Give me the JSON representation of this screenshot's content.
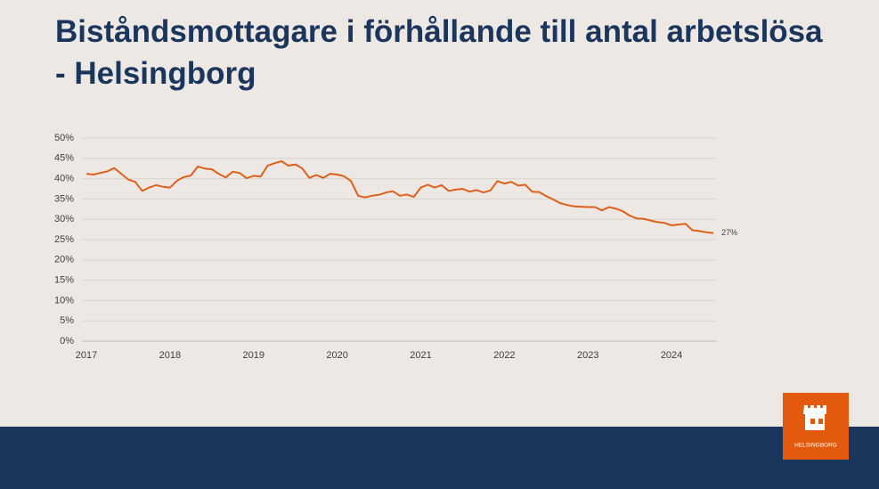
{
  "chart_data": {
    "type": "line",
    "title": "Biståndsmottagare i förhållande till antal arbetslösa - Helsingborg",
    "categories": [
      "2017",
      null,
      null,
      null,
      null,
      null,
      null,
      null,
      null,
      null,
      null,
      null,
      "2018",
      null,
      null,
      null,
      null,
      null,
      null,
      null,
      null,
      null,
      null,
      null,
      "2019",
      null,
      null,
      null,
      null,
      null,
      null,
      null,
      null,
      null,
      null,
      null,
      "2020",
      null,
      null,
      null,
      null,
      null,
      null,
      null,
      null,
      null,
      null,
      null,
      "2021",
      null,
      null,
      null,
      null,
      null,
      null,
      null,
      null,
      null,
      null,
      null,
      "2022",
      null,
      null,
      null,
      null,
      null,
      null,
      null,
      null,
      null,
      null,
      null,
      "2023",
      null,
      null,
      null,
      null,
      null,
      null,
      null,
      null,
      null,
      null,
      null,
      "2024",
      null,
      null,
      null,
      null,
      null,
      null
    ],
    "series": [
      {
        "color": "#e0601a",
        "values": [
          41.2,
          41,
          41.4,
          41.8,
          42.6,
          41.2,
          39.8,
          39.2,
          37,
          37.8,
          38.4,
          38,
          37.8,
          39.5,
          40.4,
          40.8,
          43,
          42.5,
          42.3,
          41.2,
          40.3,
          41.7,
          41.4,
          40.1,
          40.7,
          40.5,
          43.2,
          43.8,
          44.3,
          43.2,
          43.5,
          42.5,
          40.2,
          40.9,
          40.2,
          41.2,
          41,
          40.6,
          39.4,
          35.8,
          35.4,
          35.8,
          36,
          36.6,
          36.9,
          35.8,
          36.1,
          35.5,
          37.8,
          38.5,
          37.8,
          38.4,
          37,
          37.3,
          37.5,
          36.8,
          37.2,
          36.6,
          37.1,
          39.4,
          38.8,
          39.2,
          38.3,
          38.5,
          36.8,
          36.7,
          35.7,
          34.9,
          34,
          33.5,
          33.2,
          33.1,
          33,
          33,
          32.2,
          33,
          32.6,
          32,
          30.9,
          30.2,
          30.1,
          29.7,
          29.3,
          29.1,
          28.5,
          28.7,
          28.9,
          27.3,
          27.1,
          26.8,
          26.6
        ],
        "value_labels": [
          null,
          null,
          null,
          null,
          null,
          null,
          null,
          null,
          null,
          null,
          null,
          null,
          null,
          null,
          null,
          null,
          null,
          null,
          null,
          null,
          null,
          null,
          null,
          null,
          null,
          null,
          null,
          null,
          null,
          null,
          null,
          null,
          null,
          null,
          null,
          null,
          null,
          null,
          null,
          null,
          null,
          null,
          null,
          null,
          null,
          null,
          null,
          null,
          null,
          null,
          null,
          null,
          null,
          null,
          null,
          null,
          null,
          null,
          null,
          null,
          null,
          null,
          null,
          null,
          null,
          null,
          null,
          null,
          null,
          null,
          null,
          null,
          null,
          null,
          null,
          null,
          null,
          null,
          null,
          null,
          null,
          null,
          null,
          null,
          null,
          null,
          null,
          null,
          null,
          null,
          "27%"
        ]
      }
    ],
    "ylim": [
      0,
      50
    ],
    "yticks": [
      {
        "value": 0,
        "label": "0%"
      },
      {
        "value": 5,
        "label": "5%"
      },
      {
        "value": 10,
        "label": "10%"
      },
      {
        "value": 15,
        "label": "15%"
      },
      {
        "value": 20,
        "label": "20%"
      },
      {
        "value": 25,
        "label": "25%"
      },
      {
        "value": 30,
        "label": "30%"
      },
      {
        "value": 35,
        "label": "35%"
      },
      {
        "value": 40,
        "label": "40%"
      },
      {
        "value": 45,
        "label": "45%"
      },
      {
        "value": 50,
        "label": "50%"
      }
    ],
    "grid": true
  },
  "logo_text": "HELSINGBORG"
}
